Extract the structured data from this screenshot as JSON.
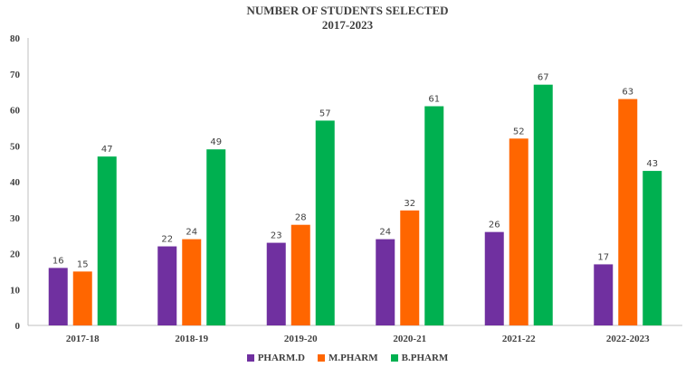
{
  "chart_data": {
    "type": "bar",
    "title": "NUMBER OF STUDENTS SELECTED",
    "subtitle": "2017-2023",
    "categories": [
      "2017-18",
      "2018-19",
      "2019-20",
      "2020-21",
      "2021-22",
      "2022-2023"
    ],
    "series": [
      {
        "name": "PHARM.D",
        "color": "#7030a0",
        "values": [
          16,
          22,
          23,
          24,
          26,
          17
        ]
      },
      {
        "name": "M.PHARM",
        "color": "#ff6600",
        "values": [
          15,
          24,
          28,
          32,
          52,
          63
        ]
      },
      {
        "name": "B.PHARM",
        "color": "#00b050",
        "values": [
          47,
          49,
          57,
          61,
          67,
          43
        ]
      }
    ],
    "ylim": [
      0,
      80
    ],
    "yticks": [
      "0",
      "10",
      "20",
      "30",
      "40",
      "50",
      "60",
      "70",
      "80"
    ],
    "grid": false,
    "legend_position": "bottom"
  }
}
